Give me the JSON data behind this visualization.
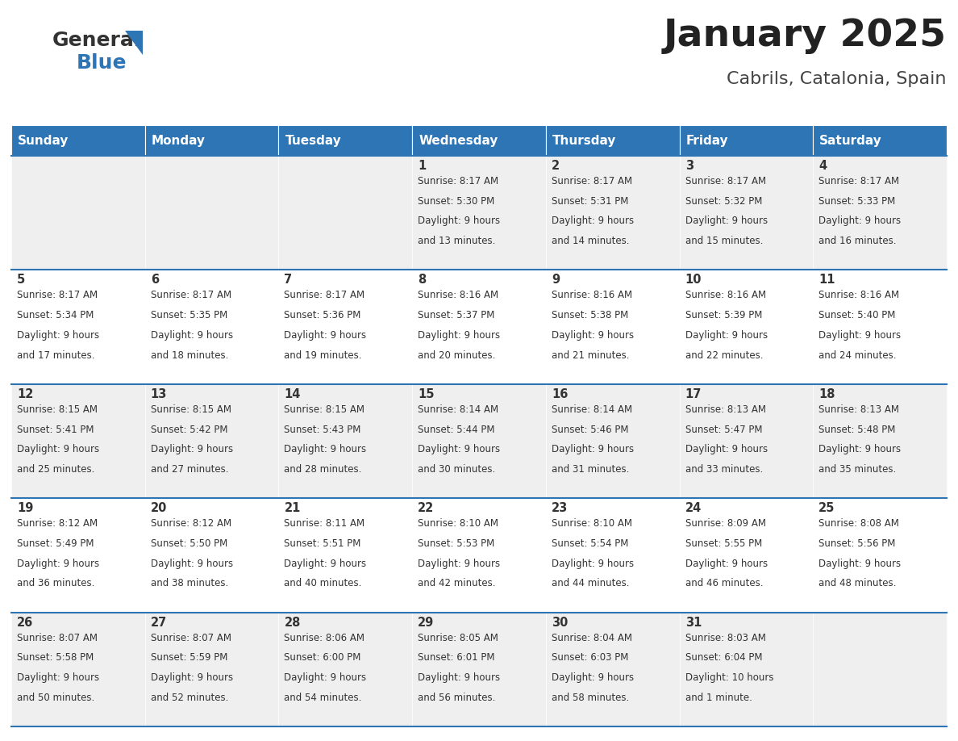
{
  "title": "January 2025",
  "subtitle": "Cabrils, Catalonia, Spain",
  "header_color": "#2E75B6",
  "header_text_color": "#FFFFFF",
  "cell_bg_even": "#EFEFEF",
  "cell_bg_odd": "#FFFFFF",
  "day_names": [
    "Sunday",
    "Monday",
    "Tuesday",
    "Wednesday",
    "Thursday",
    "Friday",
    "Saturday"
  ],
  "separator_color": "#2E75B6",
  "logo_general_color": "#333333",
  "logo_blue_color": "#2E75B6",
  "logo_triangle_color": "#2E75B6",
  "title_color": "#222222",
  "subtitle_color": "#444444",
  "text_color": "#333333",
  "days": [
    {
      "day": 1,
      "col": 3,
      "row": 0,
      "sunrise": "8:17 AM",
      "sunset": "5:30 PM",
      "daylight": "9 hours and 13 minutes."
    },
    {
      "day": 2,
      "col": 4,
      "row": 0,
      "sunrise": "8:17 AM",
      "sunset": "5:31 PM",
      "daylight": "9 hours and 14 minutes."
    },
    {
      "day": 3,
      "col": 5,
      "row": 0,
      "sunrise": "8:17 AM",
      "sunset": "5:32 PM",
      "daylight": "9 hours and 15 minutes."
    },
    {
      "day": 4,
      "col": 6,
      "row": 0,
      "sunrise": "8:17 AM",
      "sunset": "5:33 PM",
      "daylight": "9 hours and 16 minutes."
    },
    {
      "day": 5,
      "col": 0,
      "row": 1,
      "sunrise": "8:17 AM",
      "sunset": "5:34 PM",
      "daylight": "9 hours and 17 minutes."
    },
    {
      "day": 6,
      "col": 1,
      "row": 1,
      "sunrise": "8:17 AM",
      "sunset": "5:35 PM",
      "daylight": "9 hours and 18 minutes."
    },
    {
      "day": 7,
      "col": 2,
      "row": 1,
      "sunrise": "8:17 AM",
      "sunset": "5:36 PM",
      "daylight": "9 hours and 19 minutes."
    },
    {
      "day": 8,
      "col": 3,
      "row": 1,
      "sunrise": "8:16 AM",
      "sunset": "5:37 PM",
      "daylight": "9 hours and 20 minutes."
    },
    {
      "day": 9,
      "col": 4,
      "row": 1,
      "sunrise": "8:16 AM",
      "sunset": "5:38 PM",
      "daylight": "9 hours and 21 minutes."
    },
    {
      "day": 10,
      "col": 5,
      "row": 1,
      "sunrise": "8:16 AM",
      "sunset": "5:39 PM",
      "daylight": "9 hours and 22 minutes."
    },
    {
      "day": 11,
      "col": 6,
      "row": 1,
      "sunrise": "8:16 AM",
      "sunset": "5:40 PM",
      "daylight": "9 hours and 24 minutes."
    },
    {
      "day": 12,
      "col": 0,
      "row": 2,
      "sunrise": "8:15 AM",
      "sunset": "5:41 PM",
      "daylight": "9 hours and 25 minutes."
    },
    {
      "day": 13,
      "col": 1,
      "row": 2,
      "sunrise": "8:15 AM",
      "sunset": "5:42 PM",
      "daylight": "9 hours and 27 minutes."
    },
    {
      "day": 14,
      "col": 2,
      "row": 2,
      "sunrise": "8:15 AM",
      "sunset": "5:43 PM",
      "daylight": "9 hours and 28 minutes."
    },
    {
      "day": 15,
      "col": 3,
      "row": 2,
      "sunrise": "8:14 AM",
      "sunset": "5:44 PM",
      "daylight": "9 hours and 30 minutes."
    },
    {
      "day": 16,
      "col": 4,
      "row": 2,
      "sunrise": "8:14 AM",
      "sunset": "5:46 PM",
      "daylight": "9 hours and 31 minutes."
    },
    {
      "day": 17,
      "col": 5,
      "row": 2,
      "sunrise": "8:13 AM",
      "sunset": "5:47 PM",
      "daylight": "9 hours and 33 minutes."
    },
    {
      "day": 18,
      "col": 6,
      "row": 2,
      "sunrise": "8:13 AM",
      "sunset": "5:48 PM",
      "daylight": "9 hours and 35 minutes."
    },
    {
      "day": 19,
      "col": 0,
      "row": 3,
      "sunrise": "8:12 AM",
      "sunset": "5:49 PM",
      "daylight": "9 hours and 36 minutes."
    },
    {
      "day": 20,
      "col": 1,
      "row": 3,
      "sunrise": "8:12 AM",
      "sunset": "5:50 PM",
      "daylight": "9 hours and 38 minutes."
    },
    {
      "day": 21,
      "col": 2,
      "row": 3,
      "sunrise": "8:11 AM",
      "sunset": "5:51 PM",
      "daylight": "9 hours and 40 minutes."
    },
    {
      "day": 22,
      "col": 3,
      "row": 3,
      "sunrise": "8:10 AM",
      "sunset": "5:53 PM",
      "daylight": "9 hours and 42 minutes."
    },
    {
      "day": 23,
      "col": 4,
      "row": 3,
      "sunrise": "8:10 AM",
      "sunset": "5:54 PM",
      "daylight": "9 hours and 44 minutes."
    },
    {
      "day": 24,
      "col": 5,
      "row": 3,
      "sunrise": "8:09 AM",
      "sunset": "5:55 PM",
      "daylight": "9 hours and 46 minutes."
    },
    {
      "day": 25,
      "col": 6,
      "row": 3,
      "sunrise": "8:08 AM",
      "sunset": "5:56 PM",
      "daylight": "9 hours and 48 minutes."
    },
    {
      "day": 26,
      "col": 0,
      "row": 4,
      "sunrise": "8:07 AM",
      "sunset": "5:58 PM",
      "daylight": "9 hours and 50 minutes."
    },
    {
      "day": 27,
      "col": 1,
      "row": 4,
      "sunrise": "8:07 AM",
      "sunset": "5:59 PM",
      "daylight": "9 hours and 52 minutes."
    },
    {
      "day": 28,
      "col": 2,
      "row": 4,
      "sunrise": "8:06 AM",
      "sunset": "6:00 PM",
      "daylight": "9 hours and 54 minutes."
    },
    {
      "day": 29,
      "col": 3,
      "row": 4,
      "sunrise": "8:05 AM",
      "sunset": "6:01 PM",
      "daylight": "9 hours and 56 minutes."
    },
    {
      "day": 30,
      "col": 4,
      "row": 4,
      "sunrise": "8:04 AM",
      "sunset": "6:03 PM",
      "daylight": "9 hours and 58 minutes."
    },
    {
      "day": 31,
      "col": 5,
      "row": 4,
      "sunrise": "8:03 AM",
      "sunset": "6:04 PM",
      "daylight": "10 hours and 1 minute."
    }
  ]
}
